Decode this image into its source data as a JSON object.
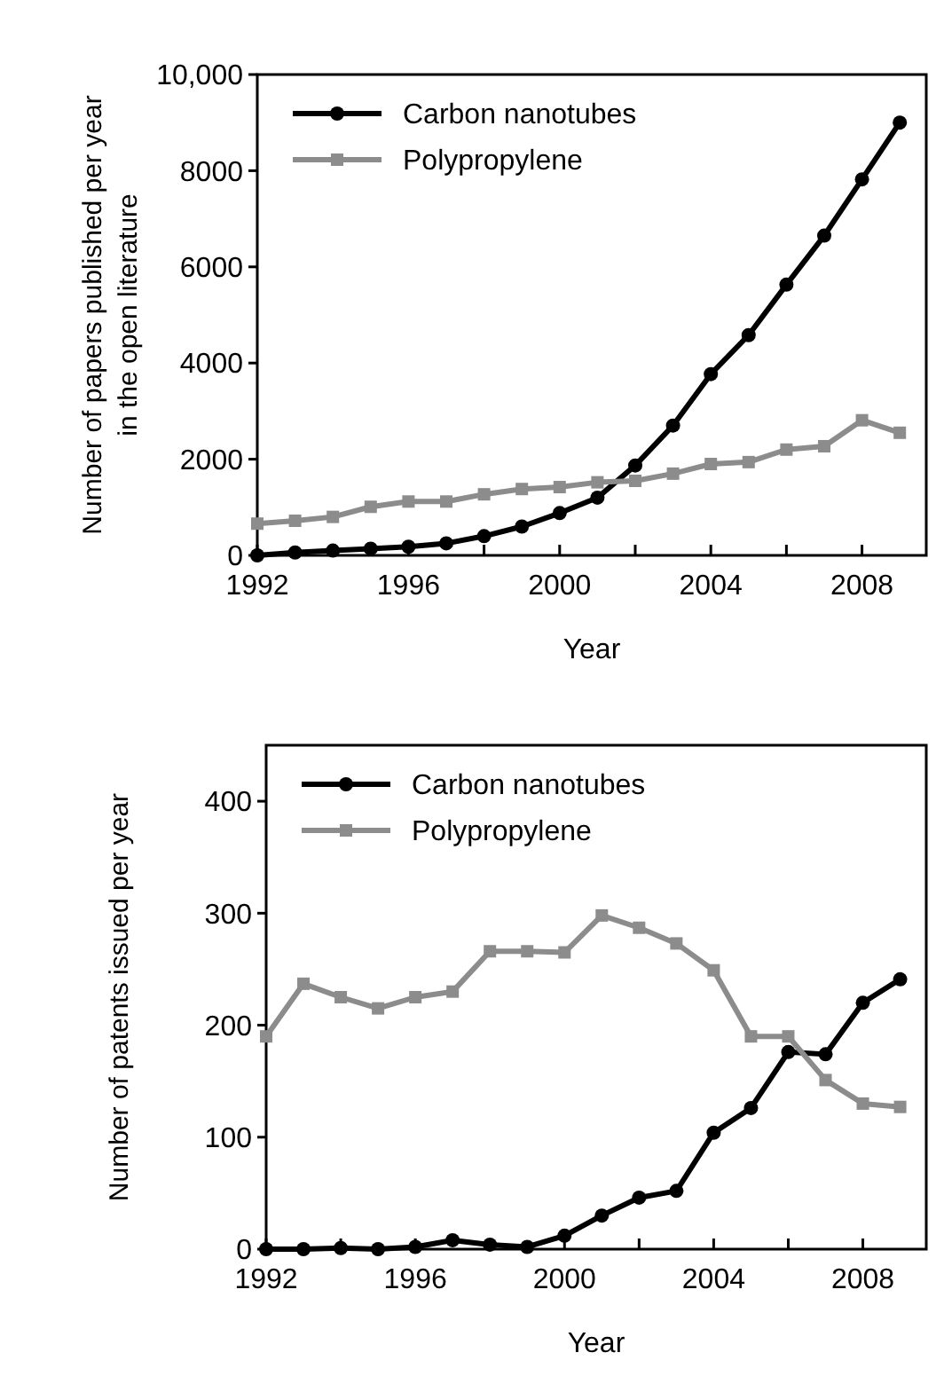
{
  "chart_data": [
    {
      "type": "line",
      "xlabel": "Year",
      "ylabel": "Number of papers published per year\nin the open literature",
      "x": [
        1992,
        1993,
        1994,
        1995,
        1996,
        1997,
        1998,
        1999,
        2000,
        2001,
        2002,
        2003,
        2004,
        2005,
        2006,
        2007,
        2008,
        2009
      ],
      "xlim": [
        1992,
        2009.7
      ],
      "xticks": [
        1992,
        {
          "value": 1994,
          "label": null
        },
        1996,
        {
          "value": 1998,
          "label": null
        },
        2000,
        {
          "value": 2002,
          "label": null
        },
        2004,
        {
          "value": 2006,
          "label": null
        },
        2008
      ],
      "ylim": [
        0,
        10000
      ],
      "yticks": [
        0,
        2000,
        4000,
        6000,
        8000,
        {
          "value": 10000,
          "label": "10,000"
        }
      ],
      "grid": false,
      "legend": "top left",
      "series": [
        {
          "name": "Carbon nanotubes",
          "color": "#000000",
          "marker": "circle",
          "values": [
            0,
            60,
            100,
            140,
            180,
            250,
            400,
            600,
            880,
            1200,
            1870,
            2700,
            3770,
            4580,
            5630,
            6650,
            7820,
            9000
          ]
        },
        {
          "name": "Polypropylene",
          "color": "#8c8c8c",
          "marker": "square",
          "values": [
            660,
            720,
            800,
            1010,
            1120,
            1120,
            1270,
            1380,
            1420,
            1520,
            1550,
            1700,
            1900,
            1940,
            2200,
            2270,
            2810,
            2550
          ]
        }
      ]
    },
    {
      "type": "line",
      "xlabel": "Year",
      "ylabel": "Number of patents issued per year",
      "x": [
        1992,
        1993,
        1994,
        1995,
        1996,
        1997,
        1998,
        1999,
        2000,
        2001,
        2002,
        2003,
        2004,
        2005,
        2006,
        2007,
        2008,
        2009
      ],
      "xlim": [
        1992,
        2009.7
      ],
      "xticks": [
        1992,
        {
          "value": 1994,
          "label": null
        },
        1996,
        {
          "value": 1998,
          "label": null
        },
        2000,
        {
          "value": 2002,
          "label": null
        },
        2004,
        {
          "value": 2006,
          "label": null
        },
        2008
      ],
      "ylim": [
        0,
        450
      ],
      "yticks": [
        0,
        100,
        200,
        300,
        400
      ],
      "grid": false,
      "legend": "top left",
      "series": [
        {
          "name": "Carbon nanotubes",
          "color": "#000000",
          "marker": "circle",
          "values": [
            0,
            0,
            1,
            0,
            2,
            8,
            4,
            2,
            12,
            30,
            46,
            52,
            104,
            126,
            176,
            174,
            220,
            241
          ]
        },
        {
          "name": "Polypropylene",
          "color": "#8c8c8c",
          "marker": "square",
          "values": [
            190,
            237,
            225,
            215,
            225,
            230,
            266,
            266,
            265,
            298,
            287,
            273,
            249,
            190,
            190,
            151,
            130,
            127
          ]
        }
      ]
    }
  ]
}
